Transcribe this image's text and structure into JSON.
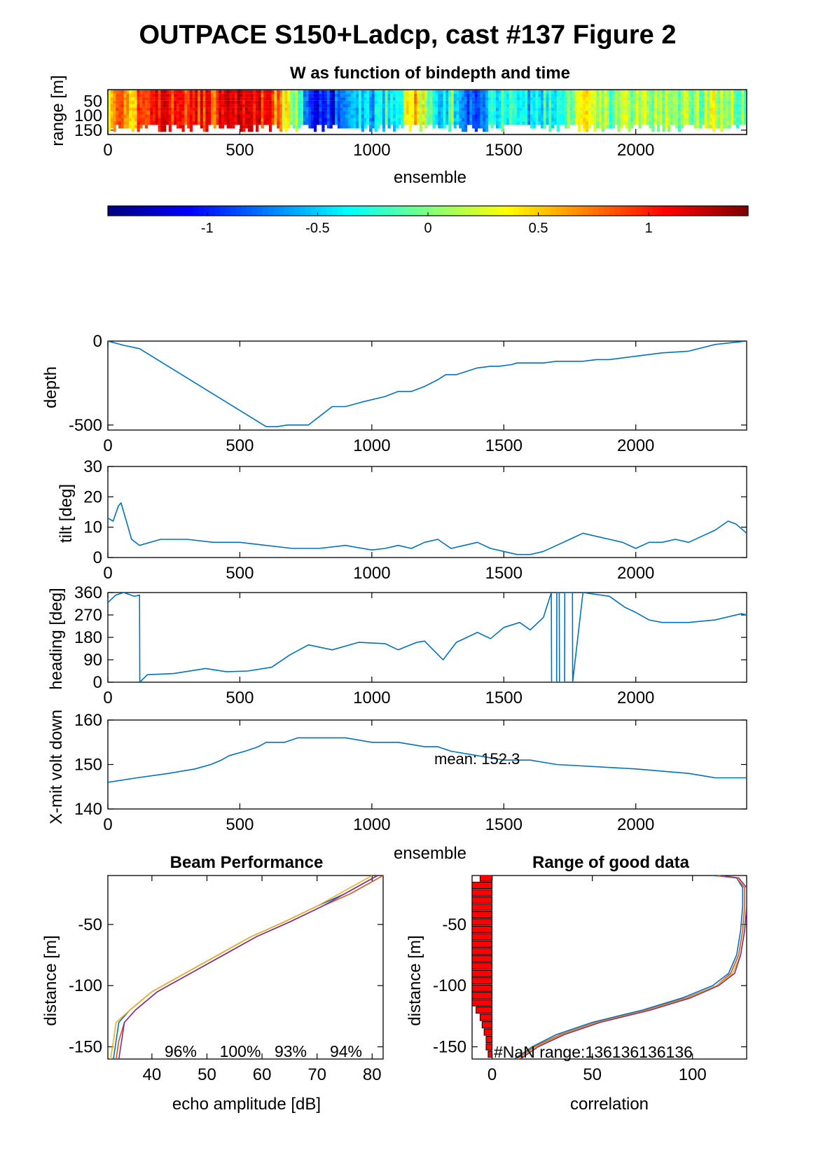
{
  "figure": {
    "title": "OUTPACE S150+Ladcp, cast #137 Figure 2"
  },
  "colors": {
    "line": "#0072BD",
    "axis": "#000000",
    "nan_bar": "#ff0000",
    "beam_lines": [
      "#0072BD",
      "#D95319",
      "#EDB120",
      "#7E2F8E"
    ]
  },
  "chart_data": [
    {
      "id": "w_image",
      "type": "heatmap",
      "title": "W as function of bindepth and time",
      "xlabel": "ensemble",
      "ylabel": "range [m]",
      "xlim": [
        0,
        2420
      ],
      "ylim": [
        165,
        10
      ],
      "xticks": [
        0,
        500,
        1000,
        1500,
        2000
      ],
      "yticks": [
        50,
        100,
        150
      ],
      "colormap": "jet",
      "clim": [
        -1.45,
        1.45
      ],
      "colorbar_ticks": [
        -1,
        -0.5,
        0,
        0.5,
        1
      ],
      "column_profile": [
        {
          "x": 0,
          "w": 0.6
        },
        {
          "x": 100,
          "w": 0.75
        },
        {
          "x": 200,
          "w": 1.0
        },
        {
          "x": 300,
          "w": 1.05
        },
        {
          "x": 400,
          "w": 0.95
        },
        {
          "x": 500,
          "w": 1.25
        },
        {
          "x": 600,
          "w": 1.0
        },
        {
          "x": 700,
          "w": 0.2
        },
        {
          "x": 760,
          "w": -0.9
        },
        {
          "x": 850,
          "w": -1.1
        },
        {
          "x": 900,
          "w": -0.4
        },
        {
          "x": 1000,
          "w": -0.5
        },
        {
          "x": 1100,
          "w": -0.2
        },
        {
          "x": 1150,
          "w": 0.6
        },
        {
          "x": 1200,
          "w": 0.2
        },
        {
          "x": 1250,
          "w": -0.8
        },
        {
          "x": 1300,
          "w": -0.1
        },
        {
          "x": 1350,
          "w": -1.0
        },
        {
          "x": 1400,
          "w": -0.6
        },
        {
          "x": 1500,
          "w": -0.3
        },
        {
          "x": 1600,
          "w": -0.5
        },
        {
          "x": 1700,
          "w": -0.2
        },
        {
          "x": 1800,
          "w": 0.3
        },
        {
          "x": 1900,
          "w": 0.0
        },
        {
          "x": 2000,
          "w": 0.15
        },
        {
          "x": 2100,
          "w": 0.1
        },
        {
          "x": 2200,
          "w": 0.0
        },
        {
          "x": 2300,
          "w": 0.2
        },
        {
          "x": 2420,
          "w": 0.0
        }
      ]
    },
    {
      "id": "depth",
      "type": "line",
      "ylabel": "depth",
      "xlim": [
        0,
        2420
      ],
      "ylim": [
        -530,
        0
      ],
      "xticks": [
        0,
        500,
        1000,
        1500,
        2000
      ],
      "yticks": [
        -500,
        0
      ],
      "x": [
        0,
        60,
        120,
        600,
        640,
        680,
        760,
        850,
        900,
        970,
        1050,
        1100,
        1150,
        1200,
        1250,
        1280,
        1320,
        1400,
        1450,
        1480,
        1530,
        1550,
        1650,
        1700,
        1800,
        1850,
        1900,
        2000,
        2050,
        2100,
        2200,
        2300,
        2420
      ],
      "y": [
        0,
        -25,
        -45,
        -510,
        -510,
        -500,
        -500,
        -390,
        -390,
        -360,
        -330,
        -300,
        -300,
        -270,
        -230,
        -200,
        -200,
        -160,
        -150,
        -150,
        -140,
        -130,
        -130,
        -120,
        -120,
        -110,
        -110,
        -90,
        -80,
        -70,
        -60,
        -20,
        0
      ]
    },
    {
      "id": "tilt",
      "type": "line",
      "ylabel": "tilt [deg]",
      "xlim": [
        0,
        2420
      ],
      "ylim": [
        0,
        30
      ],
      "xticks": [
        0,
        500,
        1000,
        1500,
        2000
      ],
      "yticks": [
        0,
        10,
        20,
        30
      ],
      "x": [
        0,
        20,
        40,
        50,
        70,
        90,
        120,
        200,
        300,
        400,
        500,
        600,
        700,
        800,
        900,
        1000,
        1050,
        1100,
        1150,
        1200,
        1250,
        1300,
        1350,
        1400,
        1450,
        1500,
        1550,
        1600,
        1650,
        1700,
        1750,
        1800,
        1850,
        1900,
        1950,
        2000,
        2050,
        2100,
        2150,
        2200,
        2250,
        2300,
        2350,
        2380,
        2420
      ],
      "y": [
        13,
        12,
        17,
        18,
        12,
        6,
        4,
        6,
        6,
        5,
        5,
        4,
        3,
        3,
        4,
        2.5,
        3,
        4,
        3,
        5,
        6,
        3,
        4,
        5,
        3,
        2,
        1,
        1,
        2,
        4,
        6,
        8,
        7,
        6,
        5,
        3,
        5,
        5,
        6,
        5,
        7,
        9,
        12,
        11,
        8
      ]
    },
    {
      "id": "heading",
      "type": "line",
      "ylabel": "heading [deg]",
      "xlim": [
        0,
        2420
      ],
      "ylim": [
        0,
        360
      ],
      "xticks": [
        0,
        500,
        1000,
        1500,
        2000
      ],
      "yticks": [
        0,
        90,
        180,
        270,
        360
      ],
      "x": [
        0,
        30,
        60,
        100,
        120,
        121,
        150,
        250,
        370,
        450,
        530,
        620,
        690,
        760,
        850,
        950,
        1050,
        1100,
        1170,
        1200,
        1270,
        1320,
        1400,
        1450,
        1500,
        1560,
        1600,
        1650,
        1680,
        1681,
        1700,
        1701,
        1710,
        1711,
        1730,
        1731,
        1760,
        1761,
        1800,
        1900,
        1960,
        2000,
        2050,
        2100,
        2200,
        2300,
        2400,
        2420
      ],
      "y": [
        320,
        350,
        360,
        345,
        350,
        0,
        30,
        35,
        55,
        42,
        45,
        60,
        110,
        150,
        130,
        160,
        155,
        130,
        160,
        165,
        90,
        160,
        200,
        175,
        220,
        240,
        210,
        260,
        360,
        0,
        0,
        360,
        360,
        0,
        0,
        360,
        360,
        0,
        360,
        345,
        300,
        280,
        250,
        240,
        240,
        250,
        275,
        270
      ]
    },
    {
      "id": "xmit",
      "type": "line",
      "ylabel": "X-mit volt down",
      "xlabel": "ensemble",
      "annotation": "mean: 152.3",
      "xlim": [
        0,
        2420
      ],
      "ylim": [
        140,
        160
      ],
      "xticks": [
        0,
        500,
        1000,
        1500,
        2000
      ],
      "yticks": [
        140,
        150,
        160
      ],
      "x": [
        0,
        110,
        230,
        330,
        390,
        430,
        460,
        520,
        570,
        600,
        670,
        720,
        840,
        900,
        1000,
        1060,
        1100,
        1200,
        1250,
        1300,
        1400,
        1500,
        1600,
        1700,
        2000,
        2200,
        2300,
        2420
      ],
      "y": [
        146,
        147,
        148,
        149,
        150,
        151,
        152,
        153,
        154,
        155,
        155,
        156,
        156,
        156,
        155,
        155,
        155,
        154,
        154,
        153,
        152,
        151,
        151,
        150,
        149,
        148,
        147,
        147
      ]
    },
    {
      "id": "beam",
      "type": "line",
      "title": "Beam Performance",
      "xlabel": "echo amplitude [dB]",
      "ylabel": "distance [m]",
      "xlim": [
        32,
        82
      ],
      "ylim": [
        -160,
        -10
      ],
      "xticks": [
        40,
        50,
        60,
        70,
        80
      ],
      "yticks": [
        -150,
        -100,
        -50
      ],
      "percent_labels": [
        "96%",
        "100%",
        "93%",
        "94%"
      ],
      "series": [
        {
          "values_x": [
            33,
            33.5,
            34,
            36,
            40,
            46,
            52,
            58,
            64,
            70,
            75,
            79,
            81
          ],
          "values_y": [
            -160,
            -145,
            -130,
            -120,
            -105,
            -90,
            -75,
            -60,
            -48,
            -35,
            -25,
            -15,
            -10
          ]
        },
        {
          "values_x": [
            33.5,
            34,
            35,
            37,
            41,
            47,
            53,
            59,
            65,
            71,
            76,
            80,
            82
          ],
          "values_y": [
            -160,
            -145,
            -130,
            -120,
            -105,
            -90,
            -75,
            -60,
            -48,
            -35,
            -25,
            -15,
            -10
          ]
        },
        {
          "values_x": [
            32.5,
            33,
            33.5,
            36,
            40,
            46,
            52,
            58,
            64,
            70,
            74,
            78,
            80
          ],
          "values_y": [
            -160,
            -145,
            -130,
            -120,
            -105,
            -90,
            -75,
            -60,
            -48,
            -35,
            -25,
            -15,
            -10
          ]
        },
        {
          "values_x": [
            34,
            34.5,
            35,
            37,
            41,
            47,
            53,
            59,
            65,
            71,
            75,
            79,
            81
          ],
          "values_y": [
            -160,
            -145,
            -130,
            -120,
            -105,
            -90,
            -75,
            -60,
            -48,
            -35,
            -25,
            -15,
            -10
          ]
        }
      ]
    },
    {
      "id": "range_good",
      "type": "line",
      "title": "Range of good data",
      "xlabel": "correlation",
      "ylabel": "distance [m]",
      "annotation": "#NaN range:136136136136",
      "xlim": [
        -10,
        127
      ],
      "ylim": [
        -160,
        -10
      ],
      "xticks": [
        0,
        50,
        100
      ],
      "yticks": [
        -150,
        -100,
        -50
      ],
      "nan_bars": {
        "y": [
          -12,
          -18,
          -24,
          -30,
          -36,
          -42,
          -48,
          -54,
          -60,
          -66,
          -72,
          -78,
          -84,
          -90,
          -96,
          -102,
          -108,
          -114,
          -120,
          -126,
          -132,
          -138,
          -144,
          -150,
          -156
        ],
        "width": [
          6,
          10,
          10,
          10,
          10,
          10,
          10,
          10,
          10,
          10,
          10,
          10,
          10,
          10,
          10,
          10,
          10,
          10,
          8,
          6,
          5,
          4,
          3,
          3,
          2
        ]
      },
      "series": [
        {
          "values_x": [
            11,
            20,
            32,
            50,
            75,
            95,
            110,
            118,
            122,
            124,
            125,
            125,
            122,
            110
          ],
          "values_y": [
            -160,
            -150,
            -140,
            -130,
            -120,
            -110,
            -100,
            -90,
            -75,
            -55,
            -35,
            -20,
            -12,
            -10
          ]
        },
        {
          "values_x": [
            12,
            21,
            34,
            52,
            77,
            97,
            112,
            119,
            123,
            125,
            126,
            126,
            122,
            112
          ],
          "values_y": [
            -160,
            -150,
            -140,
            -130,
            -120,
            -110,
            -100,
            -90,
            -75,
            -55,
            -35,
            -20,
            -12,
            -10
          ]
        },
        {
          "values_x": [
            13,
            22,
            35,
            53,
            78,
            98,
            112,
            120,
            124,
            126,
            127,
            127,
            123,
            113
          ],
          "values_y": [
            -160,
            -150,
            -140,
            -130,
            -120,
            -110,
            -100,
            -90,
            -75,
            -55,
            -35,
            -20,
            -12,
            -10
          ]
        },
        {
          "values_x": [
            14,
            23,
            36,
            54,
            79,
            99,
            113,
            121,
            124,
            126,
            127,
            127,
            123,
            114
          ],
          "values_y": [
            -160,
            -150,
            -140,
            -130,
            -120,
            -110,
            -100,
            -90,
            -75,
            -55,
            -35,
            -20,
            -12,
            -10
          ]
        }
      ]
    }
  ]
}
